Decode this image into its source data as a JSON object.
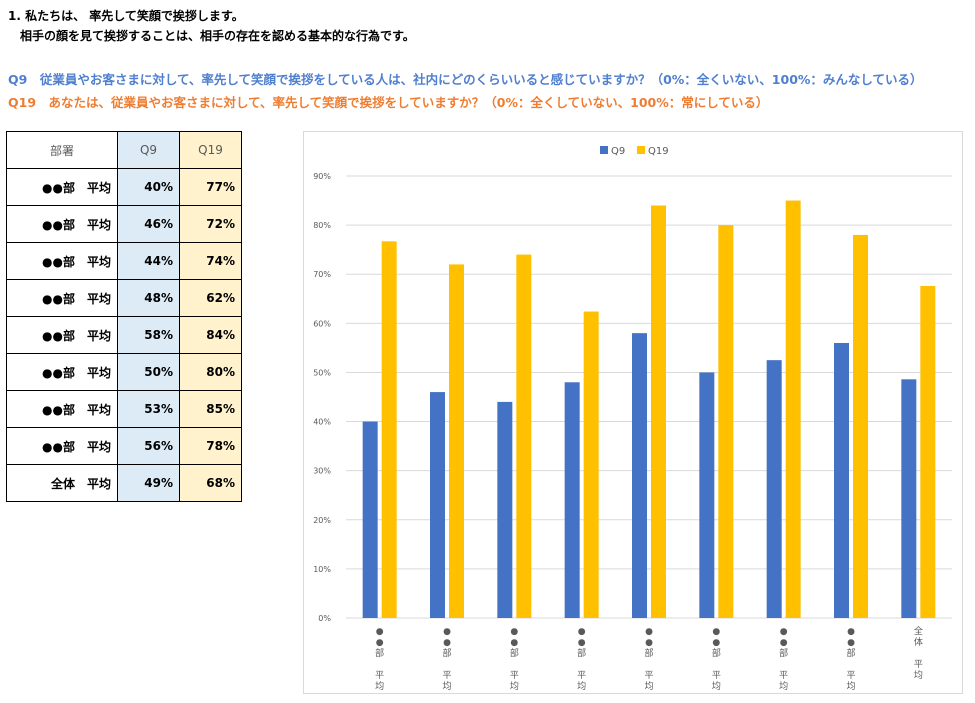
{
  "heading": {
    "line1": "1. 私たちは、 率先して笑顔で挨拶します。",
    "line2": "相手の顔を見て挨拶することは、相手の存在を認める基本的な行為です。"
  },
  "questions": {
    "q9": "Q9　従業員やお客さまに対して、率先して笑顔で挨拶をしている人は、社内にどのくらいいると感じていますか？（0%：全くいない、100%：みんなしている）",
    "q19": "Q19　あなたは、従業員やお客さまに対して、率先して笑顔で挨拶をしていますか？（0%：全くしていない、100%：常にしている）"
  },
  "table": {
    "headers": [
      "部署",
      "Q9",
      "Q19"
    ],
    "rows": [
      {
        "dept": "●●部　平均",
        "q9": "40%",
        "q19": "77%"
      },
      {
        "dept": "●●部　平均",
        "q9": "46%",
        "q19": "72%"
      },
      {
        "dept": "●●部　平均",
        "q9": "44%",
        "q19": "74%"
      },
      {
        "dept": "●●部　平均",
        "q9": "48%",
        "q19": "62%"
      },
      {
        "dept": "●●部　平均",
        "q9": "58%",
        "q19": "84%"
      },
      {
        "dept": "●●部　平均",
        "q9": "50%",
        "q19": "80%"
      },
      {
        "dept": "●●部　平均",
        "q9": "53%",
        "q19": "85%"
      },
      {
        "dept": "●●部　平均",
        "q9": "56%",
        "q19": "78%"
      },
      {
        "dept": "全体　平均",
        "q9": "49%",
        "q19": "68%"
      }
    ]
  },
  "colors": {
    "q9": "#4472c4",
    "q19": "#ffc000",
    "grid": "#d9d9d9",
    "tick": "#595959"
  },
  "chart_data": {
    "type": "bar",
    "categories": [
      [
        "●",
        "●",
        "部",
        "",
        "平",
        "均"
      ],
      [
        "●",
        "●",
        "部",
        "",
        "平",
        "均"
      ],
      [
        "●",
        "●",
        "部",
        "",
        "平",
        "均"
      ],
      [
        "●",
        "●",
        "部",
        "",
        "平",
        "均"
      ],
      [
        "●",
        "●",
        "部",
        "",
        "平",
        "均"
      ],
      [
        "●",
        "●",
        "部",
        "",
        "平",
        "均"
      ],
      [
        "●",
        "●",
        "部",
        "",
        "平",
        "均"
      ],
      [
        "●",
        "●",
        "部",
        "",
        "平",
        "均"
      ],
      [
        "全",
        "体",
        "",
        "平",
        "均"
      ]
    ],
    "series": [
      {
        "name": "Q9",
        "values": [
          40,
          46,
          44,
          48,
          58,
          50,
          52.5,
          56,
          48.6
        ]
      },
      {
        "name": "Q19",
        "values": [
          76.7,
          72,
          74,
          62.4,
          84,
          80,
          85,
          78,
          67.6
        ]
      }
    ],
    "yticks": [
      "0%",
      "10%",
      "20%",
      "30%",
      "40%",
      "50%",
      "60%",
      "70%",
      "80%",
      "90%"
    ],
    "ylim": [
      0,
      90
    ],
    "legend": "top-center",
    "grid": true
  }
}
